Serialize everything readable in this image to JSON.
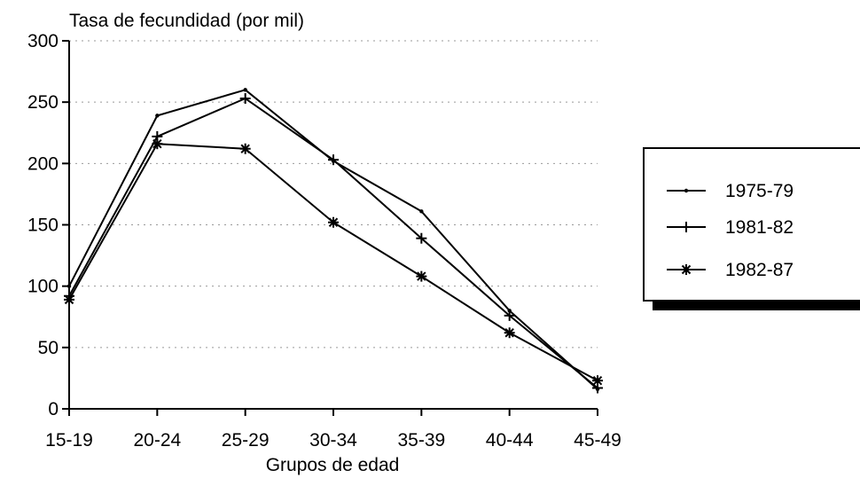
{
  "chart_data": {
    "type": "line",
    "title": "",
    "ylabel": "Tasa de fecundidad (por mil)",
    "xlabel": "Grupos de edad",
    "categories": [
      "15-19",
      "20-24",
      "25-29",
      "30-34",
      "35-39",
      "40-44",
      "45-49"
    ],
    "ylim": [
      0,
      300
    ],
    "yticks": [
      0,
      50,
      100,
      150,
      200,
      250,
      300
    ],
    "ytick_labels": [
      "0",
      "50",
      "100",
      "150",
      "200",
      "250",
      "300"
    ],
    "grid": "horizontal dotted",
    "legend_position": "right",
    "series": [
      {
        "name": "1975-79",
        "marker": "dot",
        "values": [
          100,
          239,
          260,
          202,
          161,
          80,
          16
        ]
      },
      {
        "name": "1981-82",
        "marker": "plus",
        "values": [
          92,
          222,
          253,
          203,
          139,
          76,
          17
        ]
      },
      {
        "name": "1982-87",
        "marker": "asterisk",
        "values": [
          89,
          216,
          212,
          152,
          108,
          62,
          23
        ]
      }
    ]
  }
}
